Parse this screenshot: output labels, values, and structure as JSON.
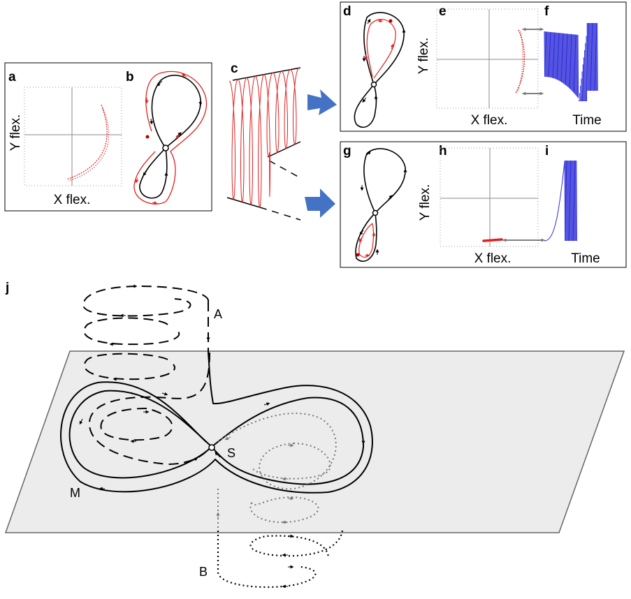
{
  "panels": {
    "a": {
      "label": "a",
      "xlabel": "X flex.",
      "ylabel": "Y flex."
    },
    "b": {
      "label": "b"
    },
    "c": {
      "label": "c"
    },
    "d": {
      "label": "d"
    },
    "e": {
      "label": "e",
      "xlabel": "X flex.",
      "ylabel": "Y flex."
    },
    "f": {
      "label": "f",
      "xlabel": "Time"
    },
    "g": {
      "label": "g"
    },
    "h": {
      "label": "h",
      "xlabel": "X flex.",
      "ylabel": "Y flex."
    },
    "i": {
      "label": "i",
      "xlabel": "Time"
    },
    "j": {
      "label": "j",
      "points": {
        "A": "A",
        "S": "S",
        "M": "M",
        "B": "B"
      }
    }
  },
  "colors": {
    "trajectory": "#e02020",
    "signal": "#2a2ad8",
    "arrow": "#4472c4",
    "plane": "#ececec",
    "grey_path": "#777777"
  }
}
